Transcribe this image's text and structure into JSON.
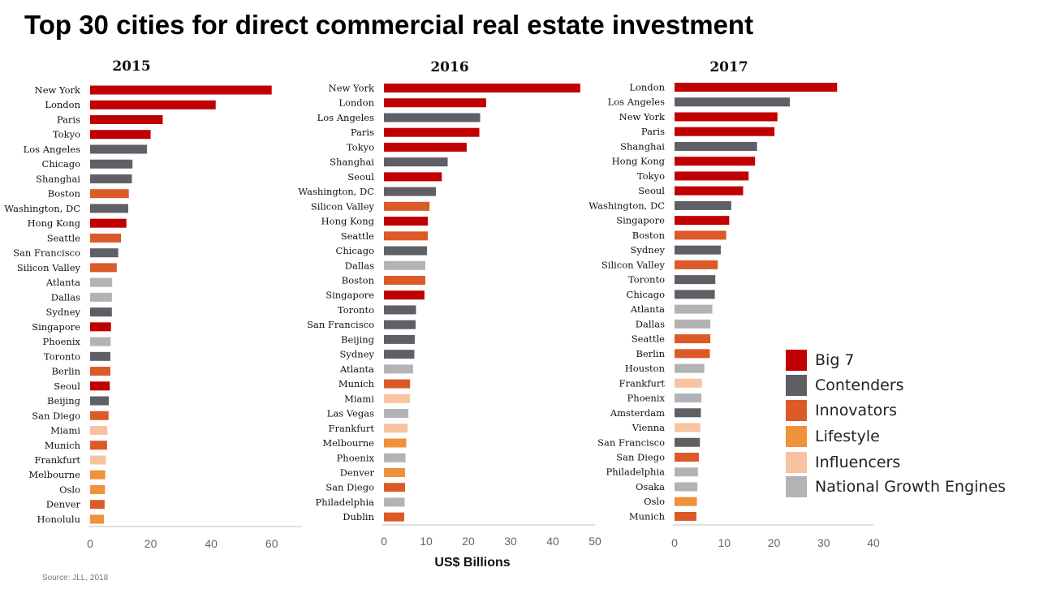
{
  "title": "Top 30 cities for direct commercial real estate investment",
  "source": "Source: JLL, 2018",
  "colors": {
    "Big 7": "#c00000",
    "Contenders": "#5f6066",
    "Innovators": "#dc5a28",
    "Lifestyle": "#f0913c",
    "Influencers": "#f8c3a0",
    "National Growth Engines": "#b3b3b5"
  },
  "legend": [
    {
      "label": "Big 7"
    },
    {
      "label": "Contenders"
    },
    {
      "label": "Innovators"
    },
    {
      "label": "Lifestyle"
    },
    {
      "label": "Influencers"
    },
    {
      "label": "National Growth Engines"
    }
  ],
  "chart_data": [
    {
      "type": "bar",
      "orientation": "horizontal",
      "title": "2015",
      "xlabel": "",
      "xlim": [
        0,
        70
      ],
      "xticks": [
        0,
        20,
        40,
        60
      ],
      "categories": [
        "New York",
        "London",
        "Paris",
        "Tokyo",
        "Los Angeles",
        "Chicago",
        "Shanghai",
        "Boston",
        "Washington, DC",
        "Hong Kong",
        "Seattle",
        "San Francisco",
        "Silicon Valley",
        "Atlanta",
        "Dallas",
        "Sydney",
        "Singapore",
        "Phoenix",
        "Toronto",
        "Berlin",
        "Seoul",
        "Beijing",
        "San Diego",
        "Miami",
        "Munich",
        "Frankfurt",
        "Melbourne",
        "Oslo",
        "Denver",
        "Honolulu"
      ],
      "values": [
        60,
        41.5,
        24,
        20,
        18.8,
        14,
        13.8,
        12.8,
        12.6,
        12,
        10.2,
        9.3,
        8.8,
        7.3,
        7.2,
        7.2,
        6.9,
        6.8,
        6.7,
        6.7,
        6.5,
        6.2,
        6.1,
        5.7,
        5.6,
        5.2,
        5,
        4.9,
        4.8,
        4.6
      ],
      "groups": [
        "Big 7",
        "Big 7",
        "Big 7",
        "Big 7",
        "Contenders",
        "Contenders",
        "Contenders",
        "Innovators",
        "Contenders",
        "Big 7",
        "Innovators",
        "Contenders",
        "Innovators",
        "National Growth Engines",
        "National Growth Engines",
        "Contenders",
        "Big 7",
        "National Growth Engines",
        "Contenders",
        "Innovators",
        "Big 7",
        "Contenders",
        "Innovators",
        "Influencers",
        "Innovators",
        "Influencers",
        "Lifestyle",
        "Lifestyle",
        "Innovators",
        "Lifestyle"
      ]
    },
    {
      "type": "bar",
      "orientation": "horizontal",
      "title": "2016",
      "xlabel": "US$ Billions",
      "xlim": [
        0,
        50
      ],
      "xticks": [
        0,
        10,
        20,
        30,
        40,
        50
      ],
      "categories": [
        "New York",
        "London",
        "Los Angeles",
        "Paris",
        "Tokyo",
        "Shanghai",
        "Seoul",
        "Washington, DC",
        "Silicon Valley",
        "Hong Kong",
        "Seattle",
        "Chicago",
        "Dallas",
        "Boston",
        "Singapore",
        "Toronto",
        "San Francisco",
        "Beijing",
        "Sydney",
        "Atlanta",
        "Munich",
        "Miami",
        "Las Vegas",
        "Frankfurt",
        "Melbourne",
        "Phoenix",
        "Denver",
        "San Diego",
        "Philadelphia",
        "Dublin"
      ],
      "values": [
        46.5,
        24.2,
        22.8,
        22.6,
        19.6,
        15.1,
        13.7,
        12.3,
        10.8,
        10.4,
        10.4,
        10.2,
        9.8,
        9.8,
        9.6,
        7.6,
        7.5,
        7.3,
        7.2,
        6.9,
        6.2,
        6.2,
        5.8,
        5.6,
        5.3,
        5.1,
        5,
        5,
        4.9,
        4.8
      ],
      "groups": [
        "Big 7",
        "Big 7",
        "Contenders",
        "Big 7",
        "Big 7",
        "Contenders",
        "Big 7",
        "Contenders",
        "Innovators",
        "Big 7",
        "Innovators",
        "Contenders",
        "National Growth Engines",
        "Innovators",
        "Big 7",
        "Contenders",
        "Contenders",
        "Contenders",
        "Contenders",
        "National Growth Engines",
        "Innovators",
        "Influencers",
        "National Growth Engines",
        "Influencers",
        "Lifestyle",
        "National Growth Engines",
        "Lifestyle",
        "Innovators",
        "National Growth Engines",
        "Innovators"
      ]
    },
    {
      "type": "bar",
      "orientation": "horizontal",
      "title": "2017",
      "xlabel": "",
      "xlim": [
        0,
        40
      ],
      "xticks": [
        0,
        10,
        20,
        30,
        40
      ],
      "categories": [
        "London",
        "Los Angeles",
        "New York",
        "Paris",
        "Shanghai",
        "Hong Kong",
        "Tokyo",
        "Seoul",
        "Washington, DC",
        "Singapore",
        "Boston",
        "Sydney",
        "Silicon Valley",
        "Toronto",
        "Chicago",
        "Atlanta",
        "Dallas",
        "Seattle",
        "Berlin",
        "Houston",
        "Frankfurt",
        "Phoenix",
        "Amsterdam",
        "Vienna",
        "San Francisco",
        "San Diego",
        "Philadelphia",
        "Osaka",
        "Oslo",
        "Munich"
      ],
      "values": [
        32.7,
        23.2,
        20.7,
        20.1,
        16.6,
        16.2,
        14.9,
        13.8,
        11.4,
        11,
        10.4,
        9.3,
        8.7,
        8.2,
        8.1,
        7.6,
        7.2,
        7.2,
        7.1,
        6,
        5.5,
        5.4,
        5.3,
        5.2,
        5.1,
        4.9,
        4.7,
        4.6,
        4.5,
        4.4
      ],
      "groups": [
        "Big 7",
        "Contenders",
        "Big 7",
        "Big 7",
        "Contenders",
        "Big 7",
        "Big 7",
        "Big 7",
        "Contenders",
        "Big 7",
        "Innovators",
        "Contenders",
        "Innovators",
        "Contenders",
        "Contenders",
        "National Growth Engines",
        "National Growth Engines",
        "Innovators",
        "Innovators",
        "National Growth Engines",
        "Influencers",
        "National Growth Engines",
        "Contenders",
        "Influencers",
        "Contenders",
        "Innovators",
        "National Growth Engines",
        "National Growth Engines",
        "Lifestyle",
        "Innovators"
      ]
    }
  ]
}
